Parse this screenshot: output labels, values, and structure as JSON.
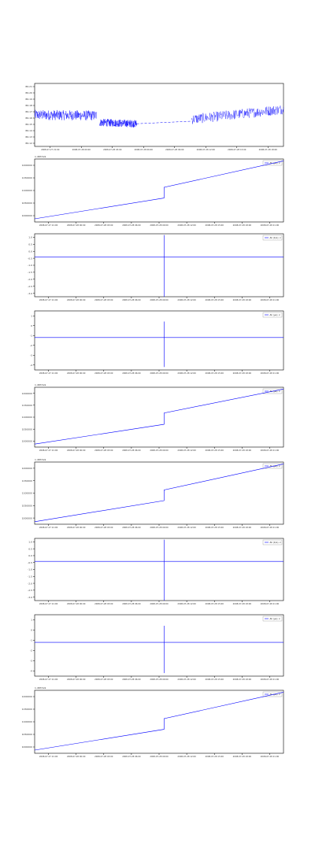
{
  "colors": {
    "line": "#0000ff",
    "axis": "#000000",
    "background": "#ffffff"
  },
  "chart_data": [
    {
      "type": "line",
      "title": "",
      "xlabel": "",
      "ylabel": "",
      "yticks": [
        "86.21",
        "86.20",
        "86.19",
        "86.18",
        "86.17",
        "86.16",
        "86.15",
        "86.14",
        "86.13",
        "86.12"
      ],
      "xticks": [
        "2008-07-27 21:00",
        "2008-07-28 00:00",
        "2008-07-28 03:00",
        "2008-07-28 06:00",
        "2008-07-28 09:00",
        "2008-07-28 12:00",
        "2008-07-28 15:00",
        "2008-07-28 18:00"
      ],
      "series": [
        {
          "segments": [
            {
              "x": [
                0.0,
                0.25
              ],
              "y": [
                86.165,
                86.164
              ],
              "noise": 0.008
            },
            {
              "x": [
                0.26,
                0.41
              ],
              "y": [
                86.153,
                86.151
              ],
              "noise": 0.006
            },
            {
              "x": [
                0.41,
                0.63
              ],
              "y": [
                86.151,
                86.155
              ],
              "dashed": true
            },
            {
              "x": [
                0.63,
                1.0
              ],
              "y": [
                86.158,
                86.174
              ],
              "noise": 0.008
            }
          ]
        }
      ]
    },
    {
      "type": "line",
      "offset": "1.4837e9",
      "yticks": [
        "1200000",
        "1150000",
        "1100000",
        "1050000",
        "1000000"
      ],
      "xticks": [
        "2008-07-27 21:00",
        "2008-07-28 00:00",
        "2008-07-28 03:00",
        "2008-07-28 06:00",
        "2008-07-28 09:00",
        "2008-07-28 12:00",
        "2008-07-28 15:00",
        "2008-07-28 18:00",
        "2008-07-28 21:00"
      ],
      "legend": "Δt (μs) ×",
      "series": [
        {
          "x": [
            0,
            0.52,
            0.52,
            1
          ],
          "y": [
            0.05,
            0.38,
            0.55,
            0.97
          ]
        }
      ]
    },
    {
      "type": "line",
      "yticks": [
        "1.0",
        "0.5",
        "0.0",
        "-0.5",
        "-1.0",
        "-1.5",
        "-2.0",
        "-2.5",
        "-3.0"
      ],
      "xticks": [
        "2008-07-27 21:00",
        "2008-07-28 00:00",
        "2008-07-28 03:00",
        "2008-07-28 06:00",
        "2008-07-28 09:00",
        "2008-07-28 12:00",
        "2008-07-28 15:00",
        "2008-07-28 18:00",
        "2008-07-28 21:00"
      ],
      "legend": "Δt (b/s) ×",
      "series": [
        {
          "x": [
            0,
            1
          ],
          "y": [
            0.63,
            0.63
          ],
          "spike": {
            "x": 0.52,
            "ytop": 0.98,
            "ybot": 0.0
          }
        }
      ]
    },
    {
      "type": "line",
      "yticks": [
        "1",
        "0",
        "-1",
        "-2",
        "-3",
        "-4"
      ],
      "xticks": [
        "2008-07-27 21:00",
        "2008-07-28 00:00",
        "2008-07-28 03:00",
        "2008-07-28 06:00",
        "2008-07-28 09:00",
        "2008-07-28 12:00",
        "2008-07-28 15:00",
        "2008-07-28 18:00",
        "2008-07-28 21:00"
      ],
      "legend": "Δt (μs) ×",
      "series": [
        {
          "x": [
            0,
            1
          ],
          "y": [
            0.55,
            0.55
          ],
          "spike": {
            "x": 0.52,
            "ytop": 0.82,
            "ybot": 0.05
          }
        }
      ]
    },
    {
      "type": "line",
      "offset": "1.4837e9",
      "yticks": [
        "1200000",
        "1150000",
        "1100000",
        "1050000",
        "1000000"
      ],
      "xticks": [
        "2008-07-27 21:00",
        "2008-07-28 00:00",
        "2008-07-28 03:00",
        "2008-07-28 06:00",
        "2008-07-28 09:00",
        "2008-07-28 12:00",
        "2008-07-28 15:00",
        "2008-07-28 18:00",
        "2008-07-28 21:00"
      ],
      "legend": "Δt (μs) ×",
      "series": [
        {
          "x": [
            0,
            0.52,
            0.52,
            1
          ],
          "y": [
            0.05,
            0.38,
            0.57,
            0.97
          ]
        }
      ]
    },
    {
      "type": "line",
      "offset": "1.4837e9",
      "yticks": [
        "1200000",
        "1150000",
        "1100000",
        "1050000",
        "1000000"
      ],
      "xticks": [
        "2008-07-27 21:00",
        "2008-07-28 00:00",
        "2008-07-28 03:00",
        "2008-07-28 06:00",
        "2008-07-28 09:00",
        "2008-07-28 12:00",
        "2008-07-28 15:00",
        "2008-07-28 18:00",
        "2008-07-28 21:00"
      ],
      "legend": "Δt (μs) ×",
      "series": [
        {
          "x": [
            0,
            0.52,
            0.52,
            1
          ],
          "y": [
            0.04,
            0.38,
            0.55,
            0.97
          ]
        }
      ]
    },
    {
      "type": "line",
      "yticks": [
        "1.0",
        "0.5",
        "0.0",
        "-0.5",
        "-1.0",
        "-1.5",
        "-2.0",
        "-2.5",
        "-3.0"
      ],
      "xticks": [
        "2008-07-27 21:00",
        "2008-07-28 00:00",
        "2008-07-28 03:00",
        "2008-07-28 06:00",
        "2008-07-28 09:00",
        "2008-07-28 12:00",
        "2008-07-28 15:00",
        "2008-07-28 18:00",
        "2008-07-28 21:00"
      ],
      "legend": "Δt (b/s) ×",
      "series": [
        {
          "x": [
            0,
            1
          ],
          "y": [
            0.63,
            0.63
          ],
          "spike": {
            "x": 0.52,
            "ytop": 0.98,
            "ybot": 0.0
          }
        }
      ]
    },
    {
      "type": "line",
      "yticks": [
        "1",
        "0",
        "-1",
        "-2",
        "-3",
        "-4"
      ],
      "xticks": [
        "2008-07-27 21:00",
        "2008-07-28 00:00",
        "2008-07-28 03:00",
        "2008-07-28 06:00",
        "2008-07-28 09:00",
        "2008-07-28 12:00",
        "2008-07-28 15:00",
        "2008-07-28 18:00",
        "2008-07-28 21:00"
      ],
      "legend": "Δt (μs) ×",
      "series": [
        {
          "x": [
            0,
            1
          ],
          "y": [
            0.55,
            0.55
          ],
          "spike": {
            "x": 0.52,
            "ytop": 0.82,
            "ybot": 0.05
          }
        }
      ]
    },
    {
      "type": "line",
      "offset": "1.4837e9",
      "yticks": [
        "1200000",
        "1150000",
        "1100000",
        "1050000",
        "1000000"
      ],
      "xticks": [
        "2008-07-27 21:00",
        "2008-07-28 00:00",
        "2008-07-28 03:00",
        "2008-07-28 06:00",
        "2008-07-28 09:00",
        "2008-07-28 12:00",
        "2008-07-28 15:00",
        "2008-07-28 18:00",
        "2008-07-28 21:00"
      ],
      "legend": "Δt (μs) ×",
      "series": [
        {
          "x": [
            0,
            0.52,
            0.52,
            1
          ],
          "y": [
            0.05,
            0.38,
            0.55,
            0.97
          ]
        }
      ]
    }
  ]
}
